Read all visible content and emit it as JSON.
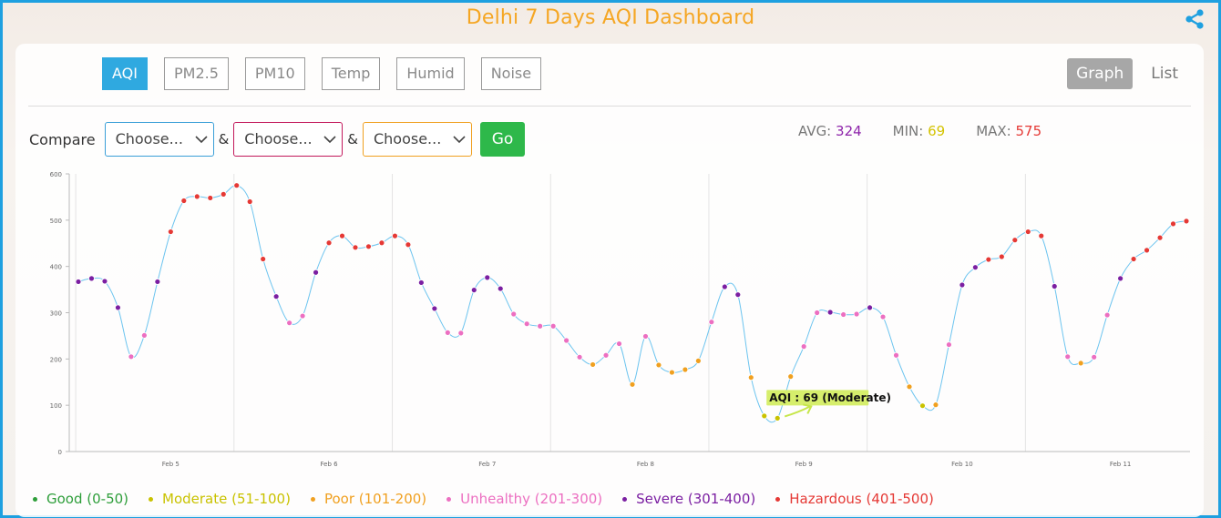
{
  "app": {
    "title": "Delhi 7 Days AQI Dashboard"
  },
  "tabs": [
    "AQI",
    "PM2.5",
    "PM10",
    "Temp",
    "Humid",
    "Noise"
  ],
  "active_tab": "AQI",
  "view": {
    "graph": "Graph",
    "list": "List",
    "active": "Graph"
  },
  "compare": {
    "label": "Compare",
    "amp": "&",
    "selects": [
      {
        "value": "Choose...",
        "color": "#3a9fd8"
      },
      {
        "value": "Choose...",
        "color": "#c2185b"
      },
      {
        "value": "Choose...",
        "color": "#f0a020"
      }
    ],
    "go_label": "Go"
  },
  "stats": {
    "avg_label": "AVG:",
    "avg_value": "324",
    "avg_color": "#8e24aa",
    "min_label": "MIN:",
    "min_value": "69",
    "min_color": "#d4c300",
    "max_label": "MAX:",
    "max_value": "575",
    "max_color": "#e53935"
  },
  "legend": [
    {
      "label": "Good (0-50)",
      "color": "#2e9e3a"
    },
    {
      "label": "Moderate (51-100)",
      "color": "#c9c200"
    },
    {
      "label": "Poor (101-200)",
      "color": "#f0a020"
    },
    {
      "label": "Unhealthy (201-300)",
      "color": "#ec6fc1"
    },
    {
      "label": "Severe (301-400)",
      "color": "#7b1fa2"
    },
    {
      "label": "Hazardous (401-500)",
      "color": "#e53935"
    }
  ],
  "tooltip": {
    "text": "AQI : 69 (Moderate)"
  },
  "chart_data": {
    "type": "line",
    "ylim": [
      0,
      600
    ],
    "yticks": [
      0,
      100,
      200,
      300,
      400,
      500,
      600
    ],
    "xticks": [
      {
        "label": "Feb 5",
        "i": 7
      },
      {
        "label": "Feb 6",
        "i": 19
      },
      {
        "label": "Feb 7",
        "i": 31
      },
      {
        "label": "Feb 8",
        "i": 43
      },
      {
        "label": "Feb 9",
        "i": 55
      },
      {
        "label": "Feb 10",
        "i": 67
      },
      {
        "label": "Feb 11",
        "i": 79
      }
    ],
    "series": [
      {
        "values": [
          367,
          374,
          368,
          311,
          205,
          251,
          367,
          475,
          542,
          551,
          548,
          556,
          575,
          540,
          416,
          335,
          278,
          293,
          387,
          451,
          466,
          441,
          443,
          451,
          466,
          447,
          365,
          309,
          257,
          256,
          349,
          376,
          352,
          297,
          276,
          271,
          271,
          240,
          204,
          188,
          208,
          233,
          145,
          249,
          187,
          171,
          177,
          196,
          280,
          356,
          339,
          160,
          77,
          72,
          162,
          227,
          300,
          301,
          296,
          297,
          311,
          291,
          208,
          140,
          99,
          101,
          231,
          360,
          398,
          415,
          421,
          457,
          475,
          466,
          357,
          205,
          191,
          204,
          295,
          374,
          416,
          435,
          462,
          492,
          498
        ]
      }
    ]
  }
}
